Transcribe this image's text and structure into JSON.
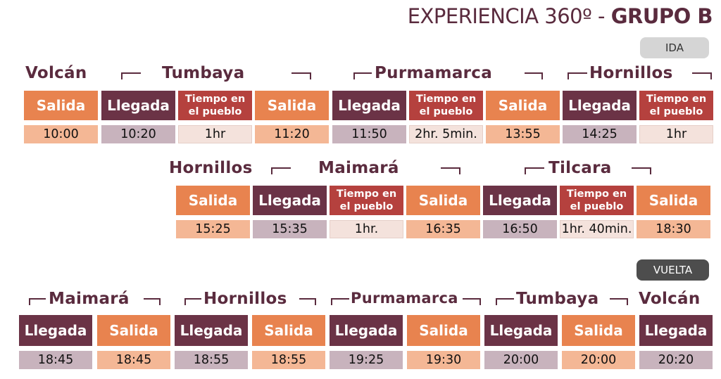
{
  "title": {
    "prefix": "EXPERIENCIA 360º - ",
    "group": "GRUPO B"
  },
  "badges": {
    "ida": "IDA",
    "vuelta": "VUELTA"
  },
  "labels": {
    "salida": "Salida",
    "llegada": "Llegada",
    "tiempo": "Tiempo en el pueblo"
  },
  "colors": {
    "salida": "#e8834f",
    "llegada": "#6b3346",
    "tiempo": "#b5413e",
    "title": "#5a2b3e"
  },
  "ida_row1": {
    "towns": [
      "Volcán",
      "Tumbaya",
      "Purmamarca",
      "Hornillos"
    ],
    "values": [
      "10:00",
      "10:20",
      "1hr",
      "11:20",
      "11:50",
      "2hr. 5min.",
      "13:55",
      "14:25",
      "1hr"
    ]
  },
  "ida_row2": {
    "towns": [
      "Hornillos",
      "Maimará",
      "Tilcara"
    ],
    "values": [
      "15:25",
      "15:35",
      "1hr.",
      "16:35",
      "16:50",
      "1hr. 40min.",
      "18:30"
    ]
  },
  "vuelta": {
    "towns": [
      "Maimará",
      "Hornillos",
      "Purmamarca",
      "Tumbaya",
      "Volcán"
    ],
    "values": [
      "18:45",
      "18:45",
      "18:55",
      "18:55",
      "19:25",
      "19:30",
      "20:00",
      "20:00",
      "20:20"
    ]
  }
}
